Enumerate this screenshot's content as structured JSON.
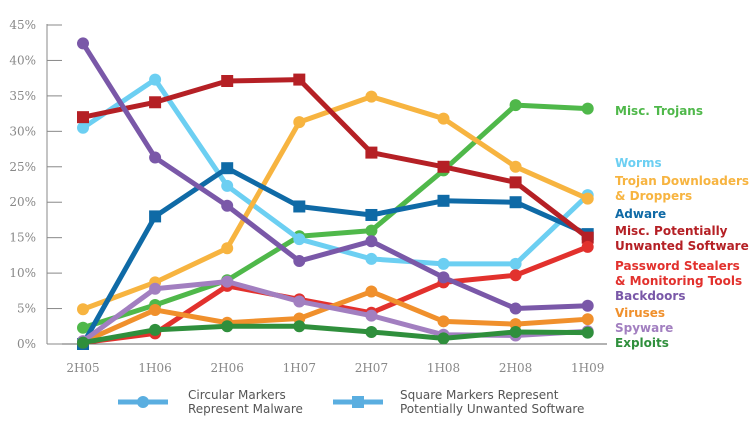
{
  "chart_data": {
    "type": "line",
    "title": "",
    "xlabel": "",
    "ylabel": "",
    "categories": [
      "2H05",
      "1H06",
      "2H06",
      "1H07",
      "2H07",
      "1H08",
      "2H08",
      "1H09"
    ],
    "ylim": [
      0,
      45
    ],
    "yticks": [
      "0%",
      "5%",
      "10%",
      "15%",
      "20%",
      "25%",
      "30%",
      "35%",
      "40%",
      "45%"
    ],
    "legend_position": "right",
    "series": [
      {
        "name": "Misc. Trojans",
        "color": "#4fb84a",
        "marker": "circle",
        "values": [
          2.3,
          5.5,
          9,
          15.2,
          16,
          24.5,
          33.7,
          33.2
        ]
      },
      {
        "name": "Worms",
        "color": "#6ccff2",
        "marker": "circle",
        "values": [
          30.5,
          37.3,
          22.3,
          14.8,
          12,
          11.3,
          11.3,
          21
        ]
      },
      {
        "name": "Trojan Downloaders & Droppers",
        "color": "#f7b440",
        "marker": "circle",
        "values": [
          4.9,
          8.7,
          13.5,
          31.3,
          34.9,
          31.8,
          25,
          20.5
        ]
      },
      {
        "name": "Adware",
        "color": "#0f6aa6",
        "marker": "square",
        "values": [
          0,
          18,
          24.8,
          19.4,
          18.2,
          20.2,
          20,
          15.5
        ]
      },
      {
        "name": "Misc. Potentially Unwanted Software",
        "color": "#b52025",
        "marker": "square",
        "values": [
          32,
          34.1,
          37.1,
          37.3,
          27,
          25,
          22.8,
          15
        ]
      },
      {
        "name": "Password Stealers & Monitoring Tools",
        "color": "#e2312d",
        "marker": "circle",
        "values": [
          0.2,
          1.5,
          8.2,
          6.3,
          4.4,
          8.7,
          9.7,
          13.7
        ]
      },
      {
        "name": "Backdoors",
        "color": "#7a58a8",
        "marker": "circle",
        "values": [
          42.4,
          26.3,
          19.5,
          11.7,
          14.5,
          9.4,
          5,
          5.4
        ]
      },
      {
        "name": "Viruses",
        "color": "#f0902c",
        "marker": "circle",
        "values": [
          0.3,
          4.8,
          3,
          3.6,
          7.4,
          3.2,
          2.8,
          3.5
        ]
      },
      {
        "name": "Spyware",
        "color": "#a27fc0",
        "marker": "circle",
        "values": [
          0.4,
          7.8,
          8.8,
          6,
          4,
          1.3,
          1.2,
          1.8
        ]
      },
      {
        "name": "Exploits",
        "color": "#2f8f3c",
        "marker": "circle",
        "values": [
          0.2,
          2,
          2.5,
          2.5,
          1.7,
          0.8,
          1.7,
          1.6
        ]
      }
    ],
    "series_label_lines": [
      [
        "Misc. Trojans"
      ],
      [
        "Worms"
      ],
      [
        "Trojan Downloaders",
        "& Droppers"
      ],
      [
        "Adware"
      ],
      [
        "Misc. Potentially",
        "Unwanted Software"
      ],
      [
        "Password Stealers",
        "& Monitoring Tools"
      ],
      [
        "Backdoors"
      ],
      [
        "Viruses"
      ],
      [
        "Spyware"
      ],
      [
        "Exploits"
      ]
    ],
    "marker_legend": {
      "circle": "Circular Markers Represent Malware",
      "circle_lines": [
        "Circular Markers",
        "Represent Malware"
      ],
      "square_lines": [
        "Square Markers Represent",
        "Potentially Unwanted Software"
      ],
      "color": "#5aaee0"
    }
  }
}
